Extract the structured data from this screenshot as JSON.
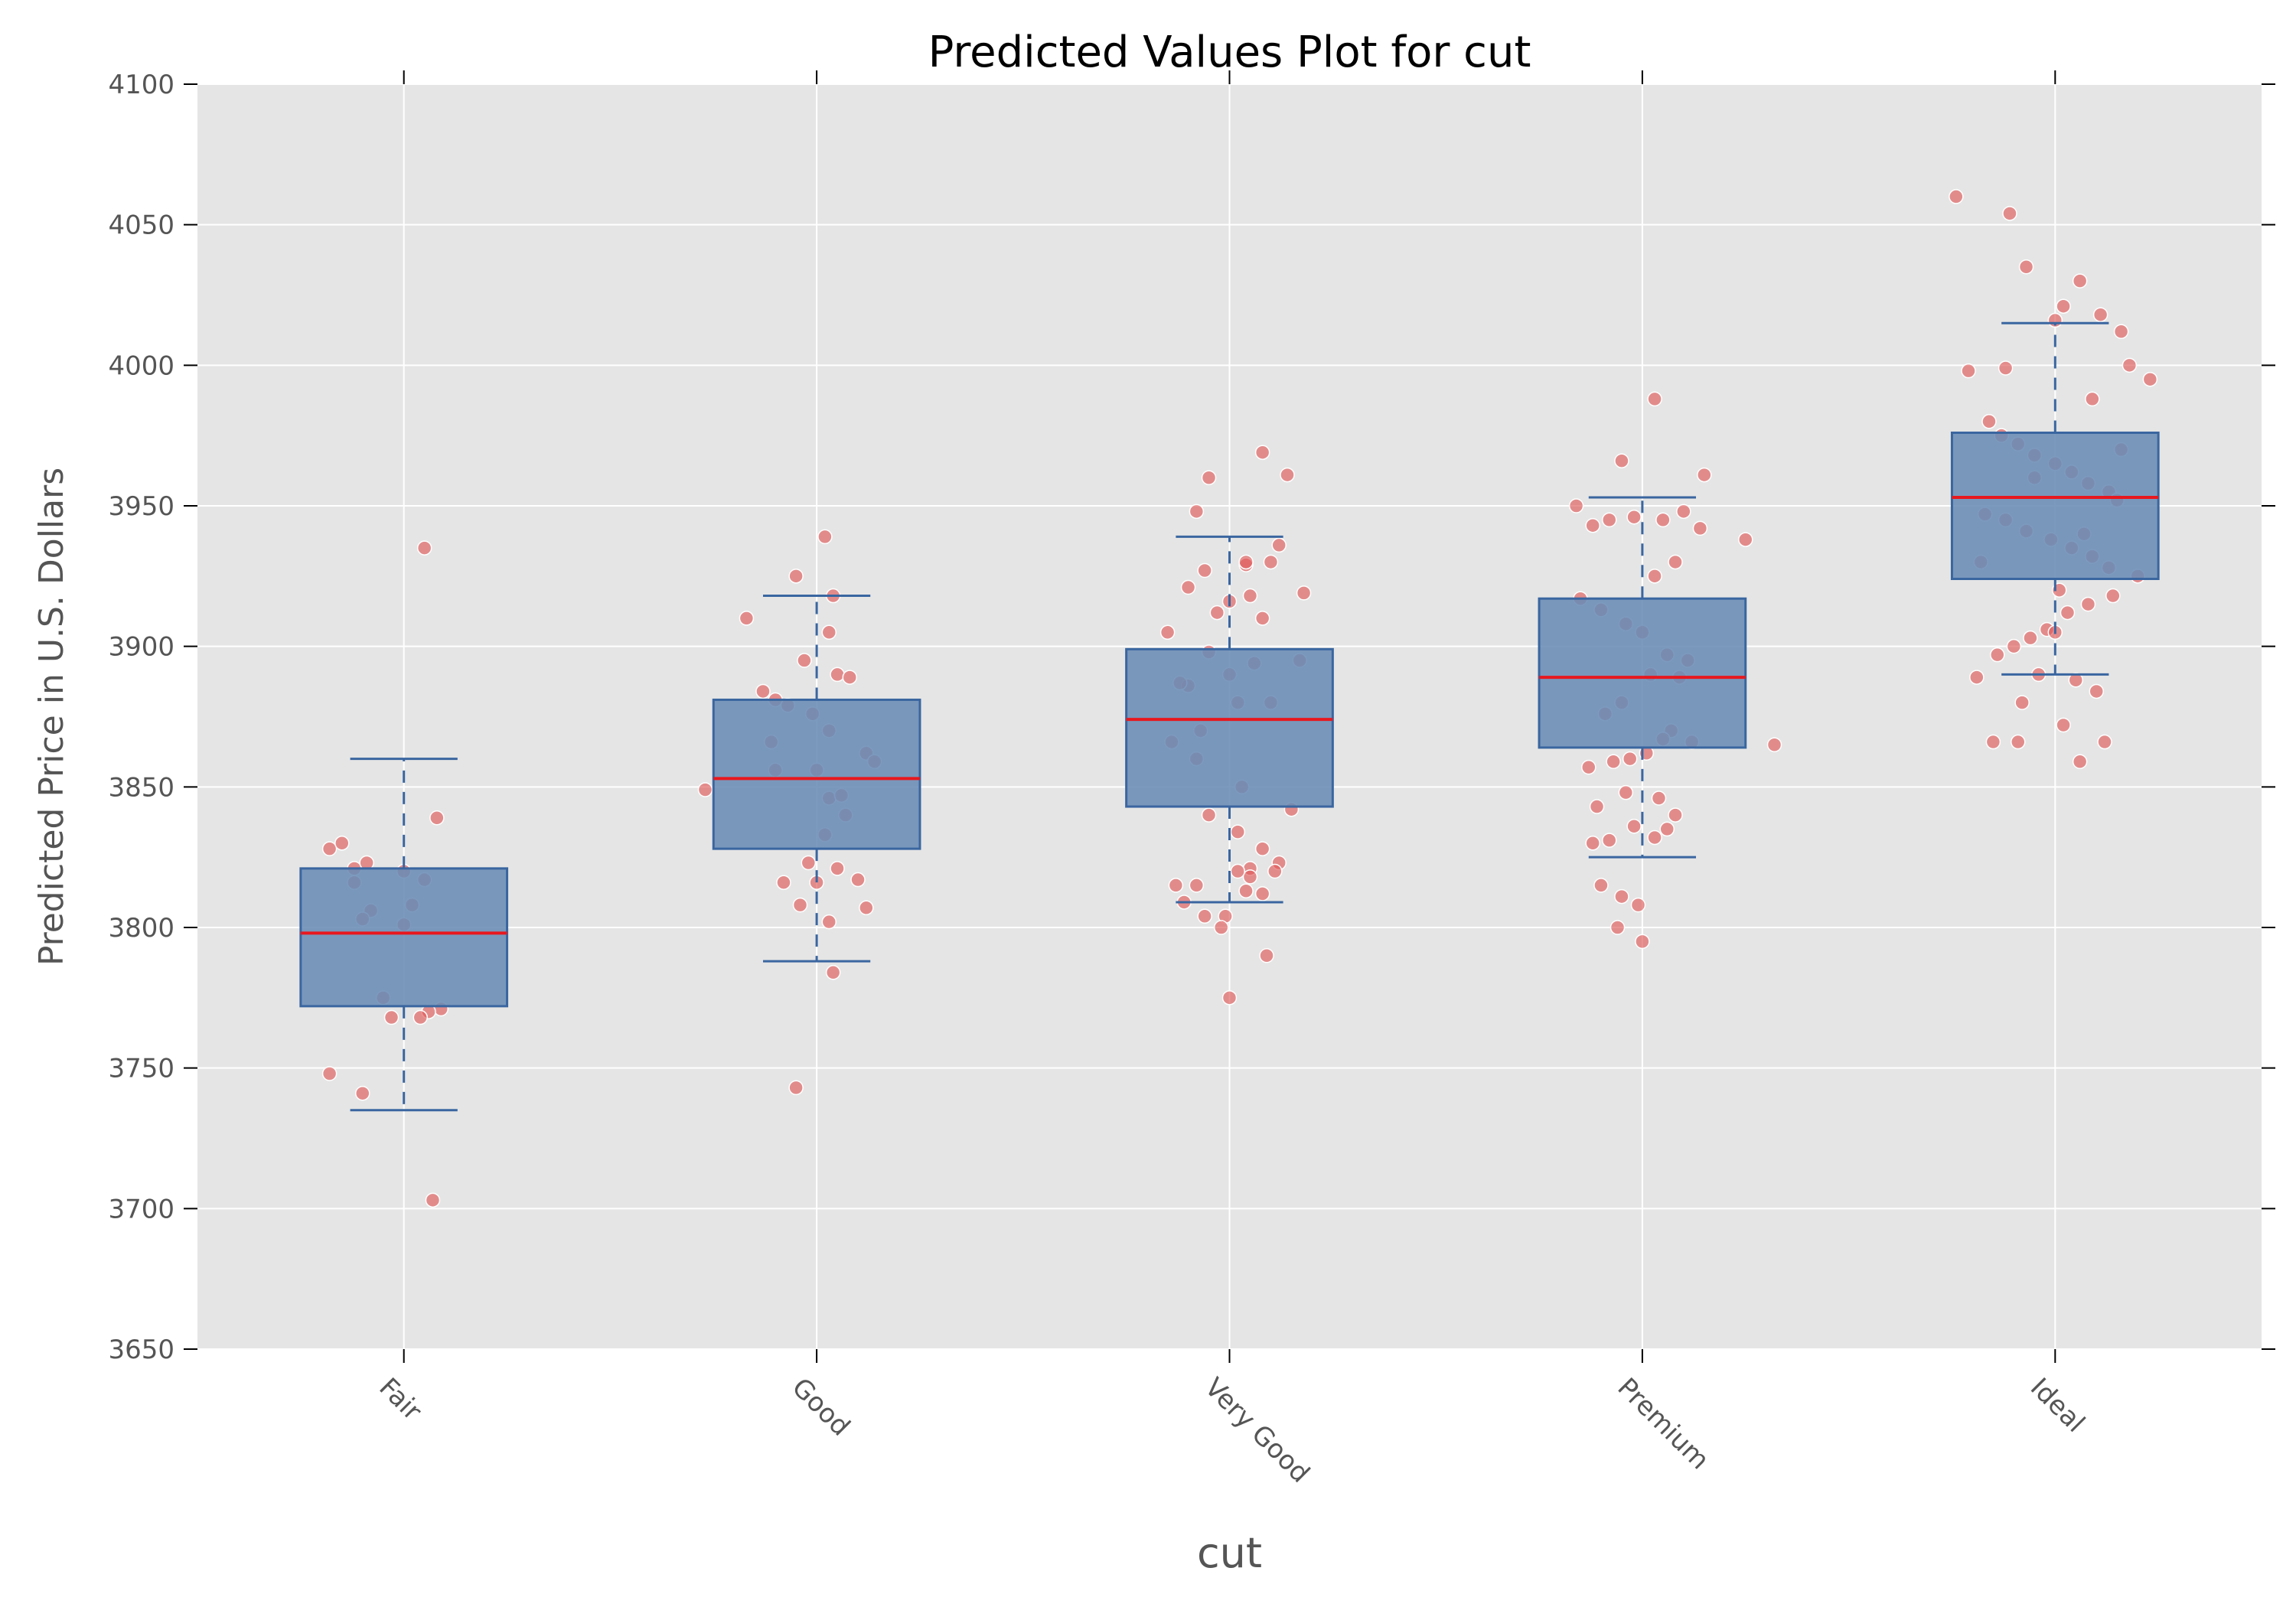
{
  "chart_data": {
    "type": "box",
    "title": "Predicted Values Plot for cut",
    "xlabel": "cut",
    "ylabel": "Predicted Price in U.S. Dollars",
    "ylim": [
      3650,
      4100
    ],
    "yticks": [
      3650,
      3700,
      3750,
      3800,
      3850,
      3900,
      3950,
      4000,
      4050,
      4100
    ],
    "categories": [
      "Fair",
      "Good",
      "Very Good",
      "Premium",
      "Ideal"
    ],
    "grid": true,
    "colors": {
      "plot_background": "#e5e5e5",
      "grid": "#ffffff",
      "box_fill": "#6a8cb5",
      "box_edge": "#3a66a0",
      "median": "#e8171e",
      "points": "#e05a5a"
    },
    "boxes": [
      {
        "category": "Fair",
        "whisker_low": 3735,
        "q1": 3772,
        "median": 3798,
        "q3": 3821,
        "whisker_high": 3860
      },
      {
        "category": "Good",
        "whisker_low": 3788,
        "q1": 3828,
        "median": 3853,
        "q3": 3881,
        "whisker_high": 3918
      },
      {
        "category": "Very Good",
        "whisker_low": 3809,
        "q1": 3843,
        "median": 3874,
        "q3": 3899,
        "whisker_high": 3939
      },
      {
        "category": "Premium",
        "whisker_low": 3825,
        "q1": 3864,
        "median": 3889,
        "q3": 3917,
        "whisker_high": 3953
      },
      {
        "category": "Ideal",
        "whisker_low": 3890,
        "q1": 3924,
        "median": 3953,
        "q3": 3976,
        "whisker_high": 4015
      }
    ],
    "points": [
      {
        "category": "Fair",
        "jitter": [
          0.05,
          -0.18,
          -0.15,
          -0.12,
          -0.08,
          -0.12,
          -0.09,
          0.02,
          0.0,
          -0.1,
          0.05,
          0.08,
          0.0,
          -0.05,
          0.09,
          0.06,
          -0.03,
          0.04,
          -0.18,
          -0.1,
          0.07
        ],
        "values": [
          3935,
          3828,
          3830,
          3816,
          3806,
          3821,
          3823,
          3808,
          3801,
          3803,
          3817,
          3839,
          3820,
          3775,
          3771,
          3770,
          3768,
          3768,
          3748,
          3741,
          3703
        ]
      },
      {
        "category": "Good",
        "jitter": [
          -0.27,
          -0.17,
          0.02,
          -0.05,
          0.04,
          0.03,
          -0.03,
          -0.13,
          -0.1,
          0.05,
          0.08,
          -0.07,
          -0.01,
          0.03,
          0.12,
          0.14,
          0.0,
          -0.1,
          -0.11,
          0.03,
          0.06,
          0.02,
          0.07,
          0.1,
          0.05,
          -0.02,
          0.0,
          -0.04,
          -0.08,
          0.12,
          0.03,
          0.04,
          -0.05
        ],
        "values": [
          3849,
          3910,
          3939,
          3925,
          3918,
          3905,
          3895,
          3884,
          3881,
          3890,
          3889,
          3879,
          3876,
          3870,
          3862,
          3859,
          3856,
          3856,
          3866,
          3846,
          3847,
          3833,
          3840,
          3817,
          3821,
          3823,
          3816,
          3808,
          3816,
          3807,
          3802,
          3784,
          3743
        ]
      },
      {
        "category": "Very Good",
        "jitter": [
          0.08,
          0.14,
          0.18,
          -0.08,
          -0.05,
          -0.06,
          -0.15,
          -0.1,
          0.04,
          0.1,
          0.05,
          0.0,
          -0.03,
          0.08,
          0.12,
          -0.05,
          0.0,
          0.06,
          0.17,
          0.02,
          -0.1,
          -0.07,
          -0.12,
          -0.14,
          -0.08,
          0.03,
          0.1,
          0.15,
          -0.05,
          0.08,
          0.12,
          0.02,
          0.05,
          -0.11,
          -0.13,
          -0.08,
          0.05,
          0.11,
          0.04,
          -0.06,
          -0.01,
          0.02,
          0.08,
          0.09,
          -0.02,
          0.0,
          0.04
        ],
        "values": [
          3969,
          3961,
          3919,
          3948,
          3960,
          3927,
          3905,
          3921,
          3929,
          3930,
          3918,
          3916,
          3912,
          3910,
          3936,
          3898,
          3890,
          3894,
          3895,
          3880,
          3886,
          3870,
          3887,
          3866,
          3860,
          3850,
          3880,
          3842,
          3840,
          3828,
          3823,
          3834,
          3821,
          3809,
          3815,
          3815,
          3818,
          3820,
          3813,
          3804,
          3804,
          3820,
          3812,
          3790,
          3800,
          3775,
          3930
        ]
      },
      {
        "category": "Premium",
        "jitter": [
          0.03,
          -0.16,
          -0.12,
          -0.08,
          -0.05,
          -0.02,
          0.05,
          0.1,
          0.15,
          0.25,
          0.14,
          0.08,
          0.03,
          -0.15,
          -0.1,
          -0.04,
          0.0,
          0.06,
          0.11,
          0.09,
          0.02,
          -0.05,
          -0.09,
          0.07,
          0.12,
          0.05,
          -0.03,
          -0.13,
          -0.07,
          0.01,
          0.04,
          0.32,
          -0.11,
          -0.02,
          0.08,
          0.06,
          -0.08,
          -0.12,
          -0.05,
          -0.01,
          0.03,
          -0.06,
          0.0,
          -0.1,
          -0.04
        ],
        "values": [
          3988,
          3950,
          3943,
          3945,
          3966,
          3946,
          3945,
          3948,
          3961,
          3938,
          3942,
          3930,
          3925,
          3917,
          3913,
          3908,
          3905,
          3897,
          3895,
          3889,
          3890,
          3880,
          3876,
          3870,
          3866,
          3867,
          3860,
          3857,
          3859,
          3862,
          3846,
          3865,
          3843,
          3836,
          3840,
          3835,
          3831,
          3830,
          3811,
          3808,
          3832,
          3800,
          3795,
          3815,
          3848
        ]
      },
      {
        "category": "Ideal",
        "jitter": [
          -0.24,
          -0.11,
          -0.07,
          0.0,
          0.02,
          0.06,
          0.11,
          0.16,
          0.18,
          0.23,
          -0.21,
          -0.16,
          -0.13,
          -0.09,
          -0.05,
          0.0,
          0.04,
          0.08,
          0.13,
          0.15,
          -0.17,
          -0.12,
          -0.07,
          -0.01,
          0.04,
          0.09,
          0.13,
          0.2,
          0.14,
          0.08,
          0.03,
          -0.02,
          -0.06,
          -0.1,
          -0.14,
          -0.19,
          -0.04,
          0.05,
          0.1,
          -0.08,
          0.02,
          0.12,
          -0.15,
          -0.09,
          0.06,
          0.0,
          -0.12,
          0.09,
          0.16,
          -0.18,
          -0.05,
          0.07,
          0.01
        ],
        "values": [
          4060,
          4054,
          4035,
          4016,
          4021,
          4030,
          4018,
          4012,
          4000,
          3995,
          3998,
          3980,
          3975,
          3972,
          3968,
          3965,
          3962,
          3958,
          3955,
          3952,
          3947,
          3945,
          3941,
          3938,
          3935,
          3932,
          3928,
          3925,
          3918,
          3915,
          3912,
          3906,
          3903,
          3900,
          3897,
          3889,
          3890,
          3888,
          3884,
          3880,
          3872,
          3866,
          3866,
          3866,
          3859,
          3905,
          3999,
          3988,
          3970,
          3930,
          3960,
          3940,
          3920
        ]
      }
    ]
  }
}
